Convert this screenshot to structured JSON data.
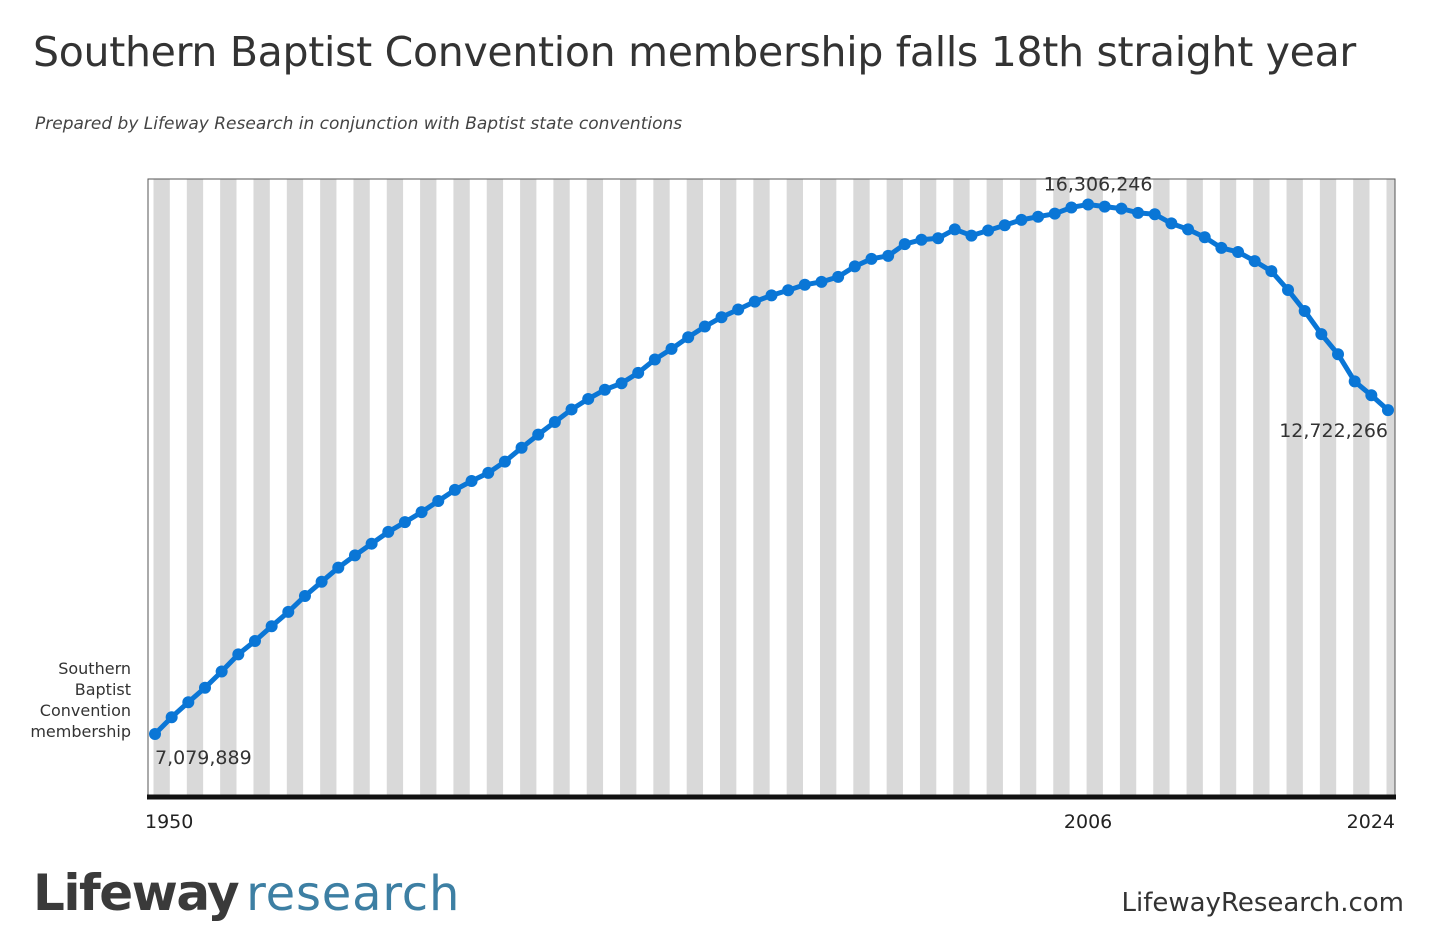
{
  "header": {
    "title": "Southern Baptist Convention membership falls 18th straight year",
    "subtitle": "Prepared by Lifeway Research in conjunction with Baptist state conventions"
  },
  "footer": {
    "brand_primary": "Lifeway",
    "brand_secondary": "research",
    "website": "LifewayResearch.com"
  },
  "colors": {
    "line": "#0a76d6",
    "stripe": "#d9d9d9",
    "background": "#ffffff",
    "axis": "#111111",
    "text": "#333333"
  },
  "chart_data": {
    "type": "line",
    "series_label": "Southern Baptist Convention membership",
    "x_tick_labels": [
      "1950",
      "2006",
      "2024"
    ],
    "x_range": [
      1950,
      2024
    ],
    "ylim": [
      6000000,
      16750000
    ],
    "grid": "alternating vertical stripes per year",
    "annotations": [
      {
        "x": 1950,
        "label": "7,079,889"
      },
      {
        "x": 2006,
        "label": "16,306,246"
      },
      {
        "x": 2024,
        "label": "12,722,266"
      }
    ],
    "series": [
      {
        "x": [
          1950,
          1951,
          1952,
          1953,
          1954,
          1955,
          1956,
          1957,
          1958,
          1959,
          1960,
          1961,
          1962,
          1963,
          1964,
          1965,
          1966,
          1967,
          1968,
          1969,
          1970,
          1971,
          1972,
          1973,
          1974,
          1975,
          1976,
          1977,
          1978,
          1979,
          1980,
          1981,
          1982,
          1983,
          1984,
          1985,
          1986,
          1987,
          1988,
          1989,
          1990,
          1991,
          1992,
          1993,
          1994,
          1995,
          1996,
          1997,
          1998,
          1999,
          2000,
          2001,
          2002,
          2003,
          2004,
          2005,
          2006,
          2007,
          2008,
          2009,
          2010,
          2011,
          2012,
          2013,
          2014,
          2015,
          2016,
          2017,
          2018,
          2019,
          2020,
          2021,
          2022,
          2023,
          2024
        ],
        "values": [
          7079889,
          7373000,
          7634000,
          7886000,
          8169000,
          8468000,
          8701000,
          8957000,
          9207000,
          9485000,
          9732000,
          9978000,
          10192000,
          10396000,
          10601000,
          10771000,
          10946000,
          11140000,
          11333000,
          11488000,
          11629000,
          11826000,
          12067000,
          12296000,
          12516000,
          12735000,
          12918000,
          13079000,
          13191000,
          13373000,
          13606000,
          13790000,
          13993000,
          14179000,
          14342000,
          14477000,
          14614000,
          14722000,
          14812000,
          14907000,
          14958000,
          15044000,
          15228000,
          15359000,
          15411000,
          15615000,
          15692000,
          15717000,
          15873000,
          15764000,
          15852000,
          15945000,
          16038000,
          16093000,
          16146000,
          16254000,
          16306246,
          16269000,
          16234000,
          16160000,
          16136000,
          15976000,
          15872000,
          15735000,
          15549000,
          15479000,
          15320000,
          15144000,
          14816000,
          14450000,
          14047000,
          13697000,
          13223000,
          12982000,
          12722266
        ]
      }
    ]
  }
}
